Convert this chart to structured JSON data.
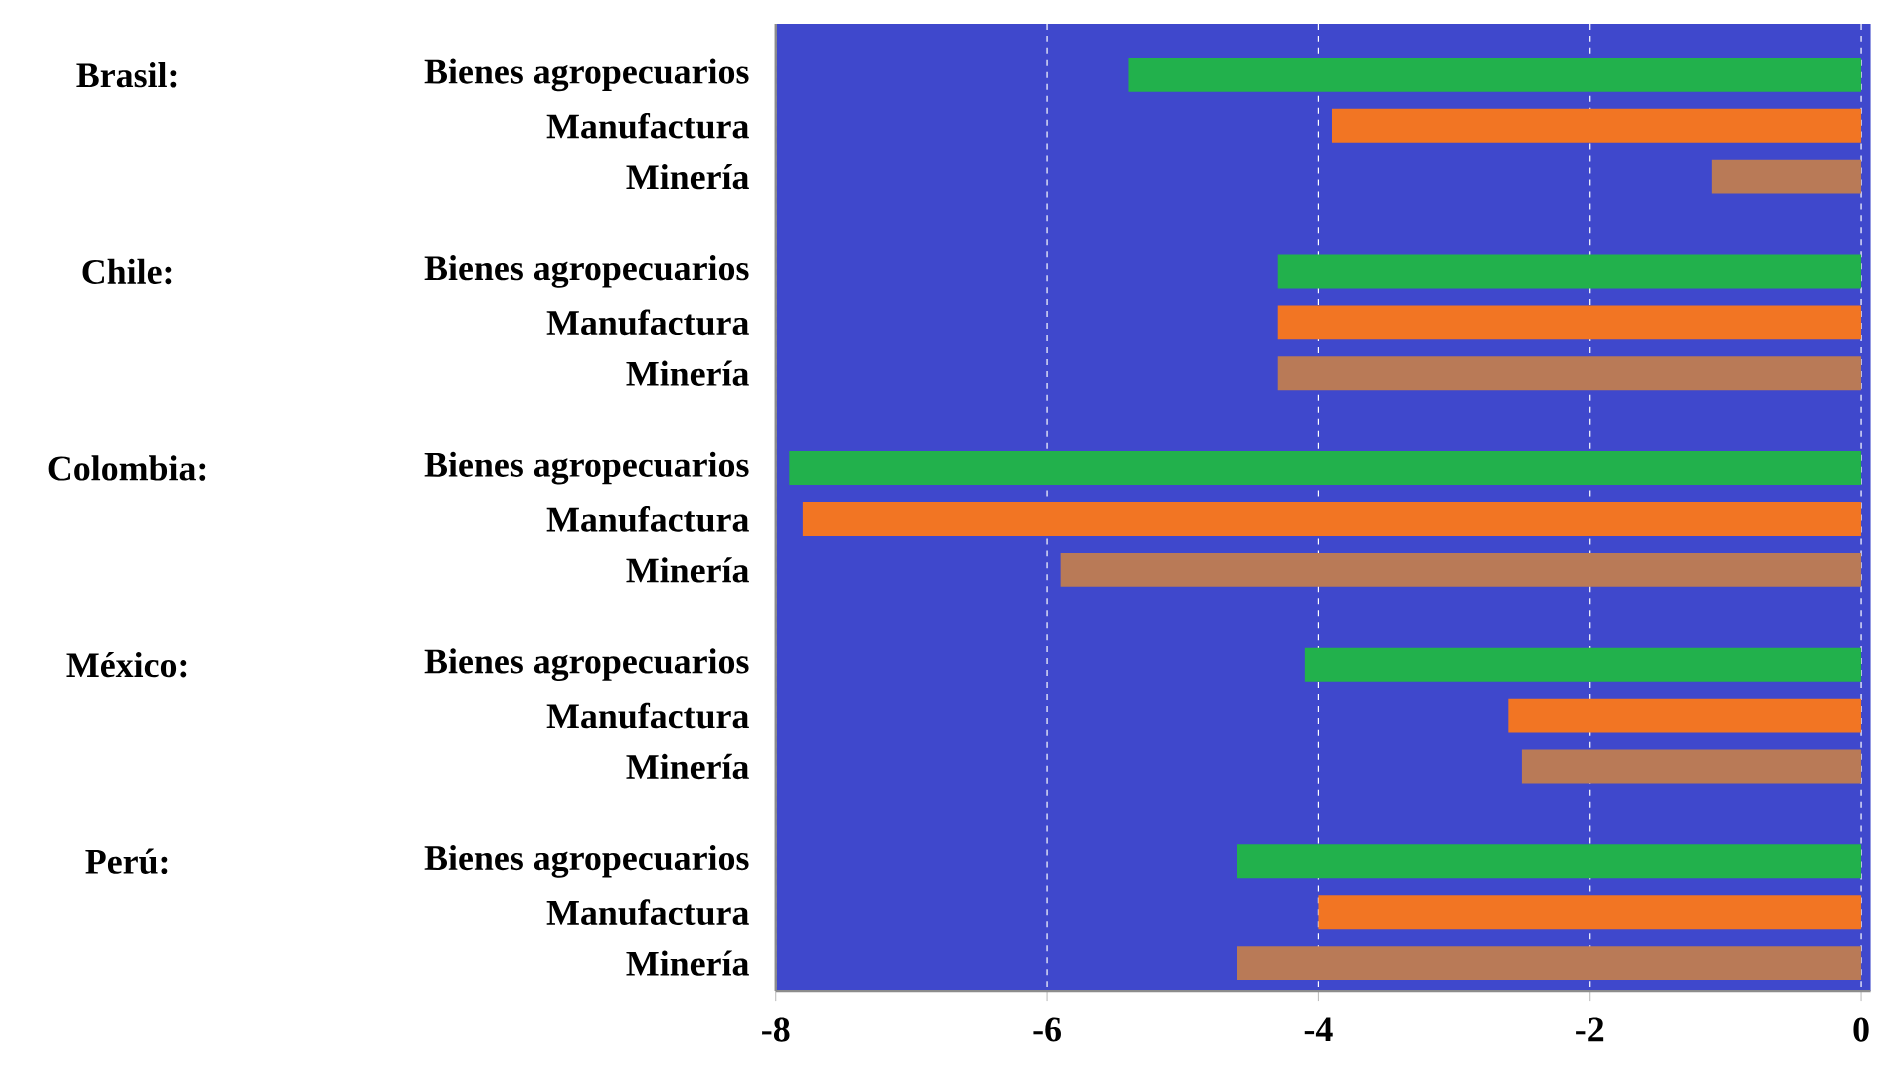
{
  "chart_data": {
    "type": "bar",
    "orientation": "horizontal",
    "categories": [
      "Bienes agropecuarios",
      "Manufactura",
      "Minería",
      "Bienes agropecuarios",
      "Manufactura",
      "Minería",
      "Bienes agropecuarios",
      "Manufactura",
      "Minería",
      "Bienes agropecuarios",
      "Manufactura",
      "Minería",
      "Bienes agropecuarios",
      "Manufactura",
      "Minería"
    ],
    "values": [
      -5.4,
      -3.9,
      -1.1,
      -4.3,
      -4.3,
      -4.3,
      -7.9,
      -7.8,
      -5.9,
      -4.1,
      -2.6,
      -2.5,
      -4.6,
      -4.0,
      -4.6
    ],
    "colors": [
      "#22b14c",
      "#f27523",
      "#b97a57",
      "#22b14c",
      "#f27523",
      "#b97a57",
      "#22b14c",
      "#f27523",
      "#b97a57",
      "#22b14c",
      "#f27523",
      "#b97a57",
      "#22b14c",
      "#f27523",
      "#b97a57"
    ],
    "annotations": [
      "Brasil:",
      "Chile:",
      "Colombia:",
      "México:",
      "Perú:"
    ],
    "xlim": [
      -8,
      0.07
    ],
    "xticks": [
      -8,
      -6,
      -4,
      -2,
      0
    ],
    "grid": "x"
  }
}
